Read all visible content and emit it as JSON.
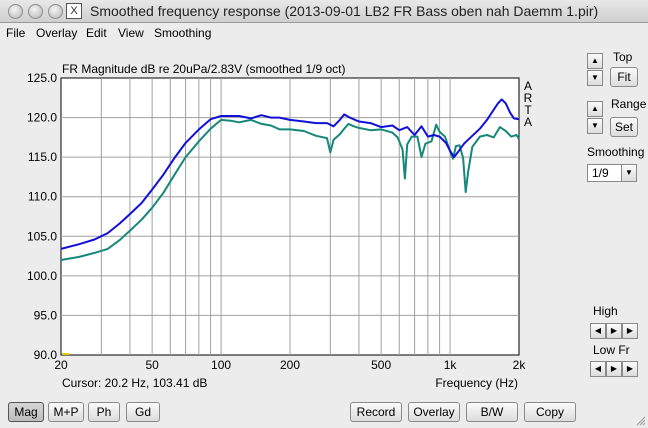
{
  "window": {
    "title": "Smoothed frequency response (2013-09-01 LB2 FR Bass oben nah Daemm 1.pir)",
    "app_icon": "X"
  },
  "menu": {
    "file": "File",
    "overlay": "Overlay",
    "edit": "Edit",
    "view": "View",
    "smoothing": "Smoothing"
  },
  "right_panel": {
    "top_label": "Top",
    "fit_label": "Fit",
    "range_label": "Range",
    "set_label": "Set",
    "smoothing_label": "Smoothing",
    "smoothing_value": "1/9",
    "high_label": "High",
    "low_label": "Low Fr"
  },
  "bottom_buttons": {
    "mag": "Mag",
    "mp": "M+P",
    "ph": "Ph",
    "gd": "Gd",
    "record": "Record",
    "overlay": "Overlay",
    "bw": "B/W",
    "copy": "Copy"
  },
  "chart_data": {
    "type": "line",
    "title": "FR Magnitude dB re 20uPa/2.83V (smoothed 1/9 oct)",
    "side_label": [
      "A",
      "R",
      "T",
      "A"
    ],
    "xlabel": "Frequency (Hz)",
    "cursor_text": "Cursor: 20.2 Hz, 103.41 dB",
    "x_scale": "log",
    "xlim": [
      20,
      2000
    ],
    "ylim": [
      90,
      125
    ],
    "x_ticks": [
      {
        "value": 20,
        "label": "20"
      },
      {
        "value": 50,
        "label": "50"
      },
      {
        "value": 100,
        "label": "100"
      },
      {
        "value": 200,
        "label": "200"
      },
      {
        "value": 500,
        "label": "500"
      },
      {
        "value": 1000,
        "label": "1k"
      },
      {
        "value": 2000,
        "label": "2k"
      }
    ],
    "y_ticks": [
      "90.0",
      "95.0",
      "100.0",
      "105.0",
      "110.0",
      "115.0",
      "120.0",
      "125.0"
    ],
    "background": "#ffffff",
    "grid_color": "#a0a0a0",
    "grid": true,
    "series": [
      {
        "color": "#1010d8",
        "points": [
          [
            20,
            103.4
          ],
          [
            24,
            104
          ],
          [
            28,
            104.6
          ],
          [
            32,
            105.4
          ],
          [
            36,
            106.6
          ],
          [
            40,
            107.8
          ],
          [
            45,
            109.2
          ],
          [
            50,
            110.9
          ],
          [
            56,
            112.8
          ],
          [
            63,
            115
          ],
          [
            70,
            116.8
          ],
          [
            80,
            118.5
          ],
          [
            90,
            119.8
          ],
          [
            100,
            120.2
          ],
          [
            110,
            120.2
          ],
          [
            120,
            120.2
          ],
          [
            135,
            119.9
          ],
          [
            150,
            120.3
          ],
          [
            165,
            120
          ],
          [
            180,
            120
          ],
          [
            200,
            119.7
          ],
          [
            230,
            119.5
          ],
          [
            260,
            119.3
          ],
          [
            290,
            119.3
          ],
          [
            310,
            118.9
          ],
          [
            330,
            119.7
          ],
          [
            345,
            120.4
          ],
          [
            365,
            120
          ],
          [
            400,
            119.5
          ],
          [
            450,
            119.3
          ],
          [
            500,
            118.8
          ],
          [
            560,
            119
          ],
          [
            600,
            118.4
          ],
          [
            650,
            118.8
          ],
          [
            700,
            117.8
          ],
          [
            750,
            118.9
          ],
          [
            800,
            117.6
          ],
          [
            850,
            117.8
          ],
          [
            900,
            117.6
          ],
          [
            960,
            116.8
          ],
          [
            1000,
            115.8
          ],
          [
            1040,
            115
          ],
          [
            1080,
            115.6
          ],
          [
            1150,
            116.7
          ],
          [
            1250,
            117.7
          ],
          [
            1350,
            118.6
          ],
          [
            1450,
            119.7
          ],
          [
            1550,
            121
          ],
          [
            1620,
            121.8
          ],
          [
            1680,
            122.3
          ],
          [
            1750,
            121.8
          ],
          [
            1830,
            120.6
          ],
          [
            1900,
            119.9
          ],
          [
            2000,
            119.8
          ]
        ]
      },
      {
        "color": "#15887a",
        "points": [
          [
            20,
            102
          ],
          [
            24,
            102.4
          ],
          [
            28,
            102.9
          ],
          [
            32,
            103.4
          ],
          [
            36,
            104.5
          ],
          [
            40,
            105.7
          ],
          [
            45,
            107.1
          ],
          [
            50,
            108.6
          ],
          [
            56,
            110.5
          ],
          [
            63,
            112.9
          ],
          [
            70,
            115
          ],
          [
            80,
            117
          ],
          [
            90,
            118.6
          ],
          [
            100,
            119.7
          ],
          [
            110,
            119.6
          ],
          [
            120,
            119.4
          ],
          [
            135,
            119.7
          ],
          [
            150,
            119.2
          ],
          [
            165,
            119
          ],
          [
            180,
            118.5
          ],
          [
            200,
            118.5
          ],
          [
            230,
            118.3
          ],
          [
            260,
            117.7
          ],
          [
            290,
            117.4
          ],
          [
            300,
            115.6
          ],
          [
            310,
            117.2
          ],
          [
            330,
            117.9
          ],
          [
            345,
            118.6
          ],
          [
            360,
            119.2
          ],
          [
            380,
            118.9
          ],
          [
            400,
            118.7
          ],
          [
            450,
            118.4
          ],
          [
            500,
            118.5
          ],
          [
            560,
            118.1
          ],
          [
            590,
            117.5
          ],
          [
            620,
            116
          ],
          [
            635,
            112.3
          ],
          [
            650,
            116.6
          ],
          [
            680,
            117.6
          ],
          [
            720,
            117.6
          ],
          [
            750,
            115
          ],
          [
            780,
            116.7
          ],
          [
            830,
            117
          ],
          [
            870,
            119.1
          ],
          [
            900,
            118.2
          ],
          [
            950,
            117.6
          ],
          [
            1000,
            115.7
          ],
          [
            1030,
            114.8
          ],
          [
            1060,
            116.4
          ],
          [
            1100,
            116.5
          ],
          [
            1140,
            114.9
          ],
          [
            1170,
            110.6
          ],
          [
            1200,
            113.2
          ],
          [
            1250,
            116.3
          ],
          [
            1350,
            117.6
          ],
          [
            1450,
            117.8
          ],
          [
            1550,
            117.5
          ],
          [
            1650,
            118.8
          ],
          [
            1750,
            118.3
          ],
          [
            1850,
            117.6
          ],
          [
            1950,
            117.8
          ],
          [
            2000,
            117.3
          ]
        ]
      }
    ]
  }
}
